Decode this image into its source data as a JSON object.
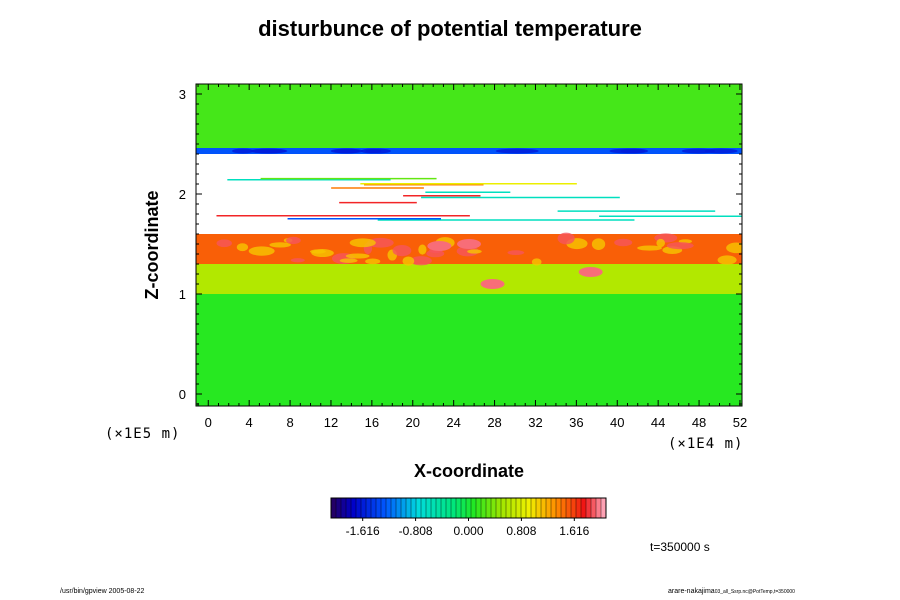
{
  "chart_data": {
    "type": "heatmap",
    "title": "disturbunce of potential temperature",
    "xlabel": "X-coordinate",
    "ylabel": "Z-coordinate",
    "x_scale_note": "(×1E4 m)",
    "y_scale_note": "(×1E5 m)",
    "xlim": [
      -1.2,
      52.2
    ],
    "ylim": [
      -0.12,
      3.1
    ],
    "x_ticks": [
      0,
      4,
      8,
      12,
      16,
      20,
      24,
      28,
      32,
      36,
      40,
      44,
      48,
      52
    ],
    "y_ticks": [
      0,
      1,
      2,
      3
    ],
    "colorbar": {
      "min": -2.1,
      "max": 2.1,
      "tick_values": [
        -1.616,
        -0.808,
        0.0,
        0.808,
        1.616
      ],
      "tick_labels": [
        "-1.616",
        "-0.808",
        "0.000",
        "0.808",
        "1.616"
      ]
    },
    "field_regions": [
      {
        "name": "upper-layer",
        "z_range": [
          2.42,
          3.1
        ],
        "value": 0.2
      },
      {
        "name": "blue-band",
        "z_range": [
          2.4,
          2.46
        ],
        "value": -1.3
      },
      {
        "name": "undefined-band",
        "z_range": [
          1.6,
          2.4
        ],
        "value": null
      },
      {
        "name": "warm-layer",
        "z_range": [
          1.3,
          1.6
        ],
        "value": 1.5
      },
      {
        "name": "transition-layer",
        "z_range": [
          1.0,
          1.3
        ],
        "value": 0.6
      },
      {
        "name": "lower-layer",
        "z_range": [
          -0.12,
          1.0
        ],
        "value": 0.1
      }
    ],
    "time_label": "t=350000 s"
  },
  "footer": {
    "left": "/usr/bin/gpview 2005-08-22",
    "right": "arare-nakajima",
    "right_sub": "03_all_Ssrp.nc@PotTemp,t=350000"
  },
  "colors": {
    "background_field": "#22e822",
    "frame": "#000000"
  }
}
